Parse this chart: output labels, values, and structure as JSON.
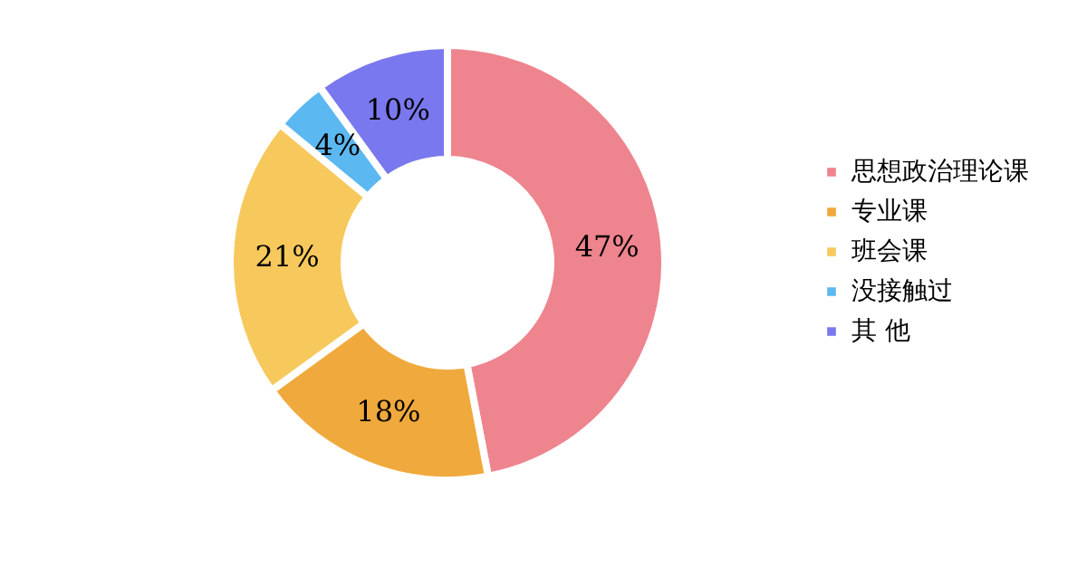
{
  "chart_data": {
    "type": "donut",
    "categories": [
      "思想政治理论课",
      "专业课",
      "班会课",
      "没接触过",
      "其 他"
    ],
    "values": [
      47,
      18,
      21,
      4,
      10
    ],
    "colors": [
      "#ee848e",
      "#f0a93c",
      "#f7c95c",
      "#5cb8f0",
      "#7a78ee"
    ],
    "value_labels": [
      "47%",
      "18%",
      "21%",
      "4%",
      "10%"
    ],
    "legend": "right"
  }
}
